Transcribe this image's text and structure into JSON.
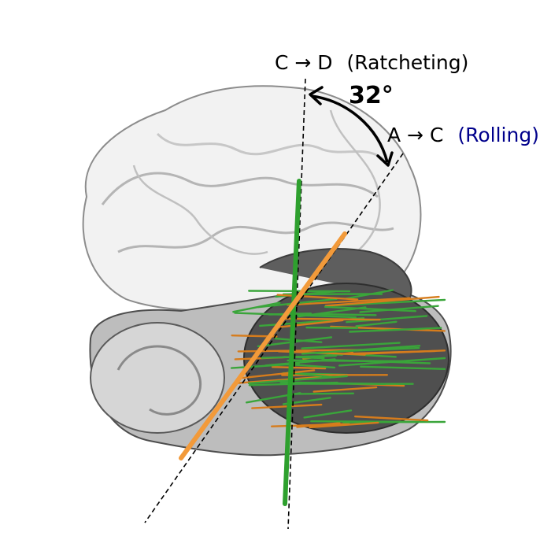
{
  "labels": {
    "ratcheting_prefix": "C → D",
    "ratcheting_name": "(Ratcheting)",
    "rolling_prefix": "A → C",
    "rolling_name": "(Rolling)",
    "angle": "32°"
  },
  "colors": {
    "large_subunit": "#e6e6e6",
    "small_subunit": "#7a7a7a",
    "ratcheting_axis": "#2ea02e",
    "rolling_axis": "#f29a3a",
    "rolling_text": "#00008b",
    "rna_green": "#3aa53a",
    "rna_orange": "#d67c1c"
  }
}
